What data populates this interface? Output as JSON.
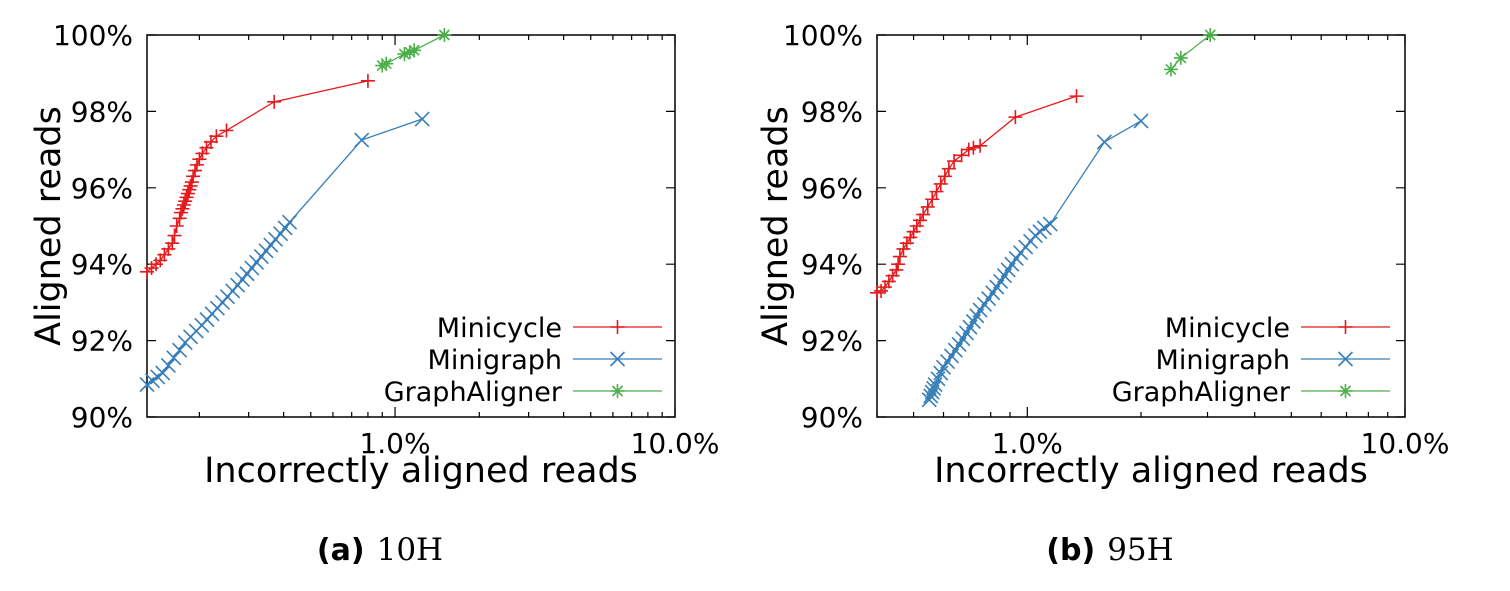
{
  "chart_data": [
    {
      "type": "line",
      "caption": {
        "letter": "(a)",
        "text": "10H"
      },
      "xlabel": "Incorrectly aligned reads",
      "ylabel": "Aligned reads",
      "xscale": "log",
      "xlim": [
        0.13,
        10
      ],
      "ylim": [
        90,
        100
      ],
      "xticks": [
        {
          "v": 1,
          "label": "1.0%"
        },
        {
          "v": 10,
          "label": "10.0%"
        }
      ],
      "yticks": [
        {
          "v": 90,
          "label": "90%"
        },
        {
          "v": 92,
          "label": "92%"
        },
        {
          "v": 94,
          "label": "94%"
        },
        {
          "v": 96,
          "label": "96%"
        },
        {
          "v": 98,
          "label": "98%"
        },
        {
          "v": 100,
          "label": "100%"
        }
      ],
      "legend_position": "bottom-right",
      "series": [
        {
          "name": "Minicycle",
          "color": "#e41a1c",
          "marker": "plus",
          "x": [
            0.13,
            0.135,
            0.14,
            0.145,
            0.15,
            0.155,
            0.16,
            0.163,
            0.166,
            0.17,
            0.172,
            0.174,
            0.176,
            0.178,
            0.18,
            0.182,
            0.184,
            0.186,
            0.188,
            0.19,
            0.193,
            0.196,
            0.2,
            0.205,
            0.212,
            0.22,
            0.23,
            0.25,
            0.37,
            0.8
          ],
          "y": [
            93.8,
            93.9,
            94.0,
            94.1,
            94.25,
            94.4,
            94.55,
            94.75,
            95.0,
            95.2,
            95.35,
            95.45,
            95.55,
            95.65,
            95.75,
            95.85,
            95.95,
            96.05,
            96.15,
            96.3,
            96.45,
            96.6,
            96.75,
            96.9,
            97.05,
            97.2,
            97.35,
            97.5,
            98.25,
            98.8
          ]
        },
        {
          "name": "Minigraph",
          "color": "#377eb8",
          "marker": "x",
          "x": [
            0.13,
            0.136,
            0.142,
            0.148,
            0.155,
            0.162,
            0.17,
            0.178,
            0.186,
            0.195,
            0.204,
            0.213,
            0.222,
            0.232,
            0.242,
            0.252,
            0.263,
            0.274,
            0.285,
            0.296,
            0.308,
            0.32,
            0.333,
            0.346,
            0.36,
            0.374,
            0.39,
            0.405,
            0.42,
            0.76,
            1.25
          ],
          "y": [
            90.85,
            90.95,
            91.05,
            91.15,
            91.35,
            91.55,
            91.75,
            91.95,
            92.1,
            92.25,
            92.4,
            92.55,
            92.7,
            92.85,
            93.0,
            93.15,
            93.3,
            93.45,
            93.6,
            93.75,
            93.9,
            94.05,
            94.2,
            94.35,
            94.5,
            94.65,
            94.8,
            94.95,
            95.1,
            97.25,
            97.8
          ]
        },
        {
          "name": "GraphAligner",
          "color": "#4daf4a",
          "marker": "star",
          "x": [
            0.9,
            0.93,
            1.08,
            1.13,
            1.17,
            1.5
          ],
          "y": [
            99.2,
            99.25,
            99.5,
            99.55,
            99.6,
            100.0
          ]
        }
      ]
    },
    {
      "type": "line",
      "caption": {
        "letter": "(b)",
        "text": "95H"
      },
      "xlabel": "Incorrectly aligned reads",
      "ylabel": "Aligned reads",
      "xscale": "log",
      "xlim": [
        0.4,
        10
      ],
      "ylim": [
        90,
        100
      ],
      "xticks": [
        {
          "v": 1,
          "label": "1.0%"
        },
        {
          "v": 10,
          "label": "10.0%"
        }
      ],
      "yticks": [
        {
          "v": 90,
          "label": "90%"
        },
        {
          "v": 92,
          "label": "92%"
        },
        {
          "v": 94,
          "label": "94%"
        },
        {
          "v": 96,
          "label": "96%"
        },
        {
          "v": 98,
          "label": "98%"
        },
        {
          "v": 100,
          "label": "100%"
        }
      ],
      "legend_position": "bottom-right",
      "series": [
        {
          "name": "Minicycle",
          "color": "#e41a1c",
          "marker": "plus",
          "x": [
            0.4,
            0.41,
            0.42,
            0.43,
            0.44,
            0.45,
            0.455,
            0.46,
            0.47,
            0.48,
            0.49,
            0.5,
            0.51,
            0.52,
            0.53,
            0.545,
            0.56,
            0.575,
            0.59,
            0.605,
            0.62,
            0.64,
            0.67,
            0.7,
            0.72,
            0.75,
            0.93,
            1.35
          ],
          "y": [
            93.25,
            93.3,
            93.4,
            93.55,
            93.7,
            93.85,
            94.0,
            94.2,
            94.4,
            94.55,
            94.7,
            94.85,
            95.0,
            95.15,
            95.3,
            95.5,
            95.7,
            95.9,
            96.1,
            96.3,
            96.5,
            96.7,
            96.85,
            97.0,
            97.05,
            97.1,
            97.85,
            98.4
          ]
        },
        {
          "name": "Minigraph",
          "color": "#377eb8",
          "marker": "x",
          "x": [
            0.55,
            0.555,
            0.56,
            0.565,
            0.57,
            0.58,
            0.59,
            0.6,
            0.615,
            0.63,
            0.645,
            0.66,
            0.675,
            0.69,
            0.705,
            0.72,
            0.735,
            0.75,
            0.77,
            0.79,
            0.81,
            0.83,
            0.85,
            0.87,
            0.89,
            0.91,
            0.935,
            0.96,
            0.99,
            1.02,
            1.05,
            1.08,
            1.11,
            1.15,
            1.6,
            2.0
          ],
          "y": [
            90.45,
            90.55,
            90.65,
            90.75,
            90.85,
            91.0,
            91.15,
            91.3,
            91.45,
            91.6,
            91.75,
            91.9,
            92.05,
            92.2,
            92.35,
            92.5,
            92.65,
            92.8,
            92.95,
            93.1,
            93.25,
            93.4,
            93.55,
            93.7,
            93.85,
            94.0,
            94.15,
            94.3,
            94.45,
            94.6,
            94.75,
            94.85,
            94.95,
            95.05,
            97.2,
            97.75
          ]
        },
        {
          "name": "GraphAligner",
          "color": "#4daf4a",
          "marker": "star",
          "x": [
            2.4,
            2.55,
            3.05
          ],
          "y": [
            99.1,
            99.4,
            100.0
          ]
        }
      ]
    }
  ]
}
